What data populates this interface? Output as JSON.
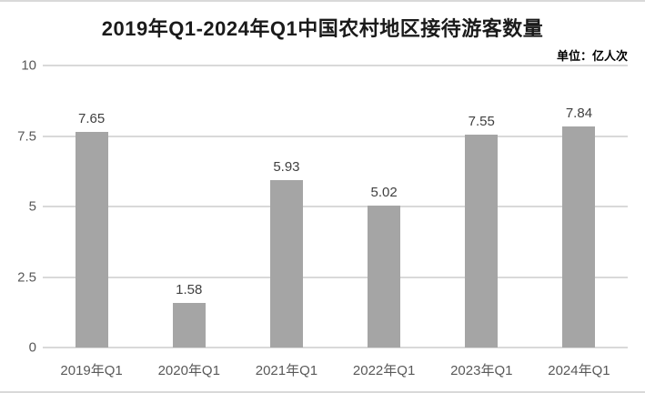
{
  "chart_data": {
    "type": "bar",
    "title": "2019年Q1-2024年Q1中国农村地区接待游客数量",
    "unit_label": "单位：亿人次",
    "categories": [
      "2019年Q1",
      "2020年Q1",
      "2021年Q1",
      "2022年Q1",
      "2023年Q1",
      "2024年Q1"
    ],
    "values": [
      7.65,
      1.58,
      5.93,
      5.02,
      7.55,
      7.84
    ],
    "value_labels": [
      "7.65",
      "1.58",
      "5.93",
      "5.02",
      "7.55",
      "7.84"
    ],
    "xlabel": "",
    "ylabel": "",
    "ylim": [
      0,
      10
    ],
    "yticks": [
      "0",
      "2.5",
      "5",
      "7.5",
      "10"
    ],
    "grid": "horizontal",
    "legend": "none",
    "colors": {
      "bar": "#a5a5a5",
      "gridline": "#d9d9d9",
      "border": "#d9d9d9",
      "axis_label": "#595959",
      "value_label": "#404040",
      "title": "#1a1a1a",
      "background": "#ffffff"
    }
  }
}
